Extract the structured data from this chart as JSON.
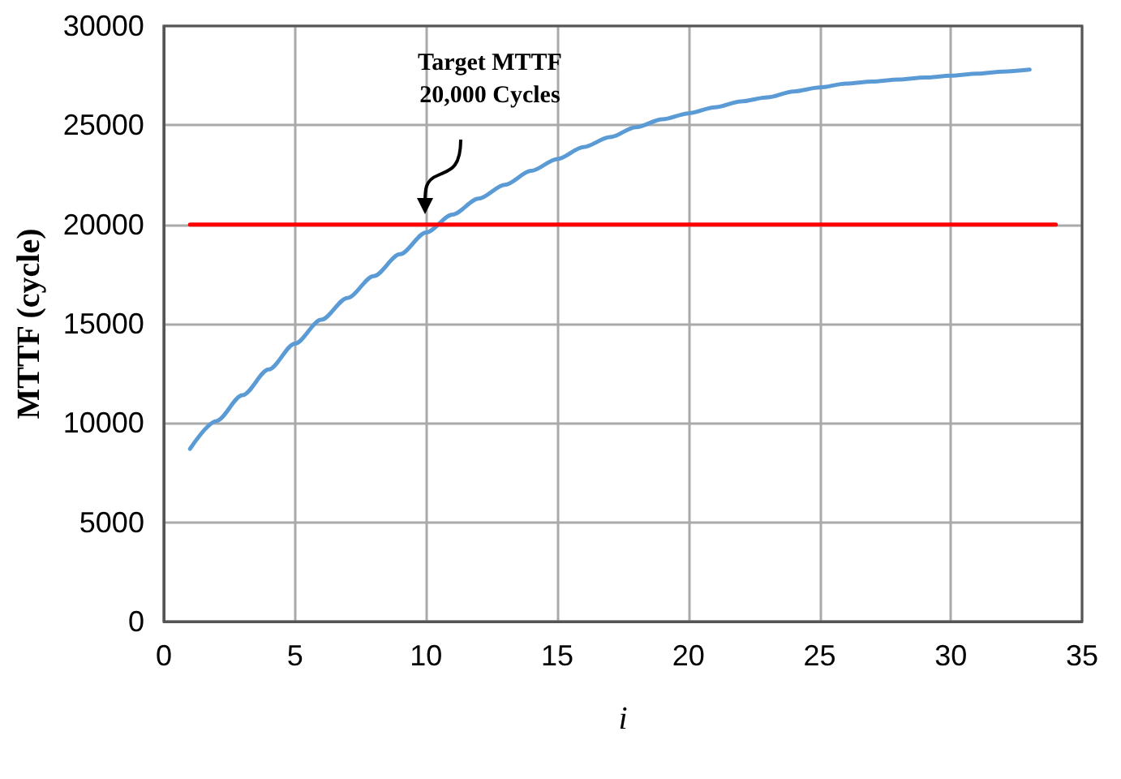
{
  "chart_data": {
    "type": "line",
    "xlabel": "i",
    "ylabel": "MTTF (cycle)",
    "xlim": [
      0,
      35
    ],
    "xticks": [
      0,
      5,
      10,
      15,
      20,
      25,
      30,
      35
    ],
    "ylim": [
      0,
      30000
    ],
    "yticks": [
      0,
      5000,
      10000,
      15000,
      20000,
      25000,
      30000
    ],
    "grid": true,
    "marker": "none",
    "line_style": "solid",
    "series": [
      {
        "color": "#5b9bd5",
        "x": [
          1,
          2,
          3,
          4,
          5,
          6,
          7,
          8,
          9,
          10,
          11,
          12,
          13,
          14,
          15,
          16,
          17,
          18,
          19,
          20,
          21,
          22,
          23,
          24,
          25,
          26,
          27,
          28,
          29,
          30,
          31,
          32,
          33
        ],
        "values": [
          8700,
          10100,
          11400,
          12700,
          14000,
          15200,
          16300,
          17400,
          18500,
          19600,
          20500,
          21300,
          22000,
          22700,
          23300,
          23900,
          24400,
          24900,
          25300,
          25600,
          25900,
          26200,
          26400,
          26700,
          26900,
          27100,
          27200,
          27300,
          27400,
          27500,
          27600,
          27700,
          27800
        ]
      },
      {
        "color": "#ff0000",
        "x": [
          1,
          34
        ],
        "values": [
          20000,
          20000
        ]
      }
    ],
    "annotations": [
      "Target MTTF\n20,000 Cycles"
    ]
  }
}
